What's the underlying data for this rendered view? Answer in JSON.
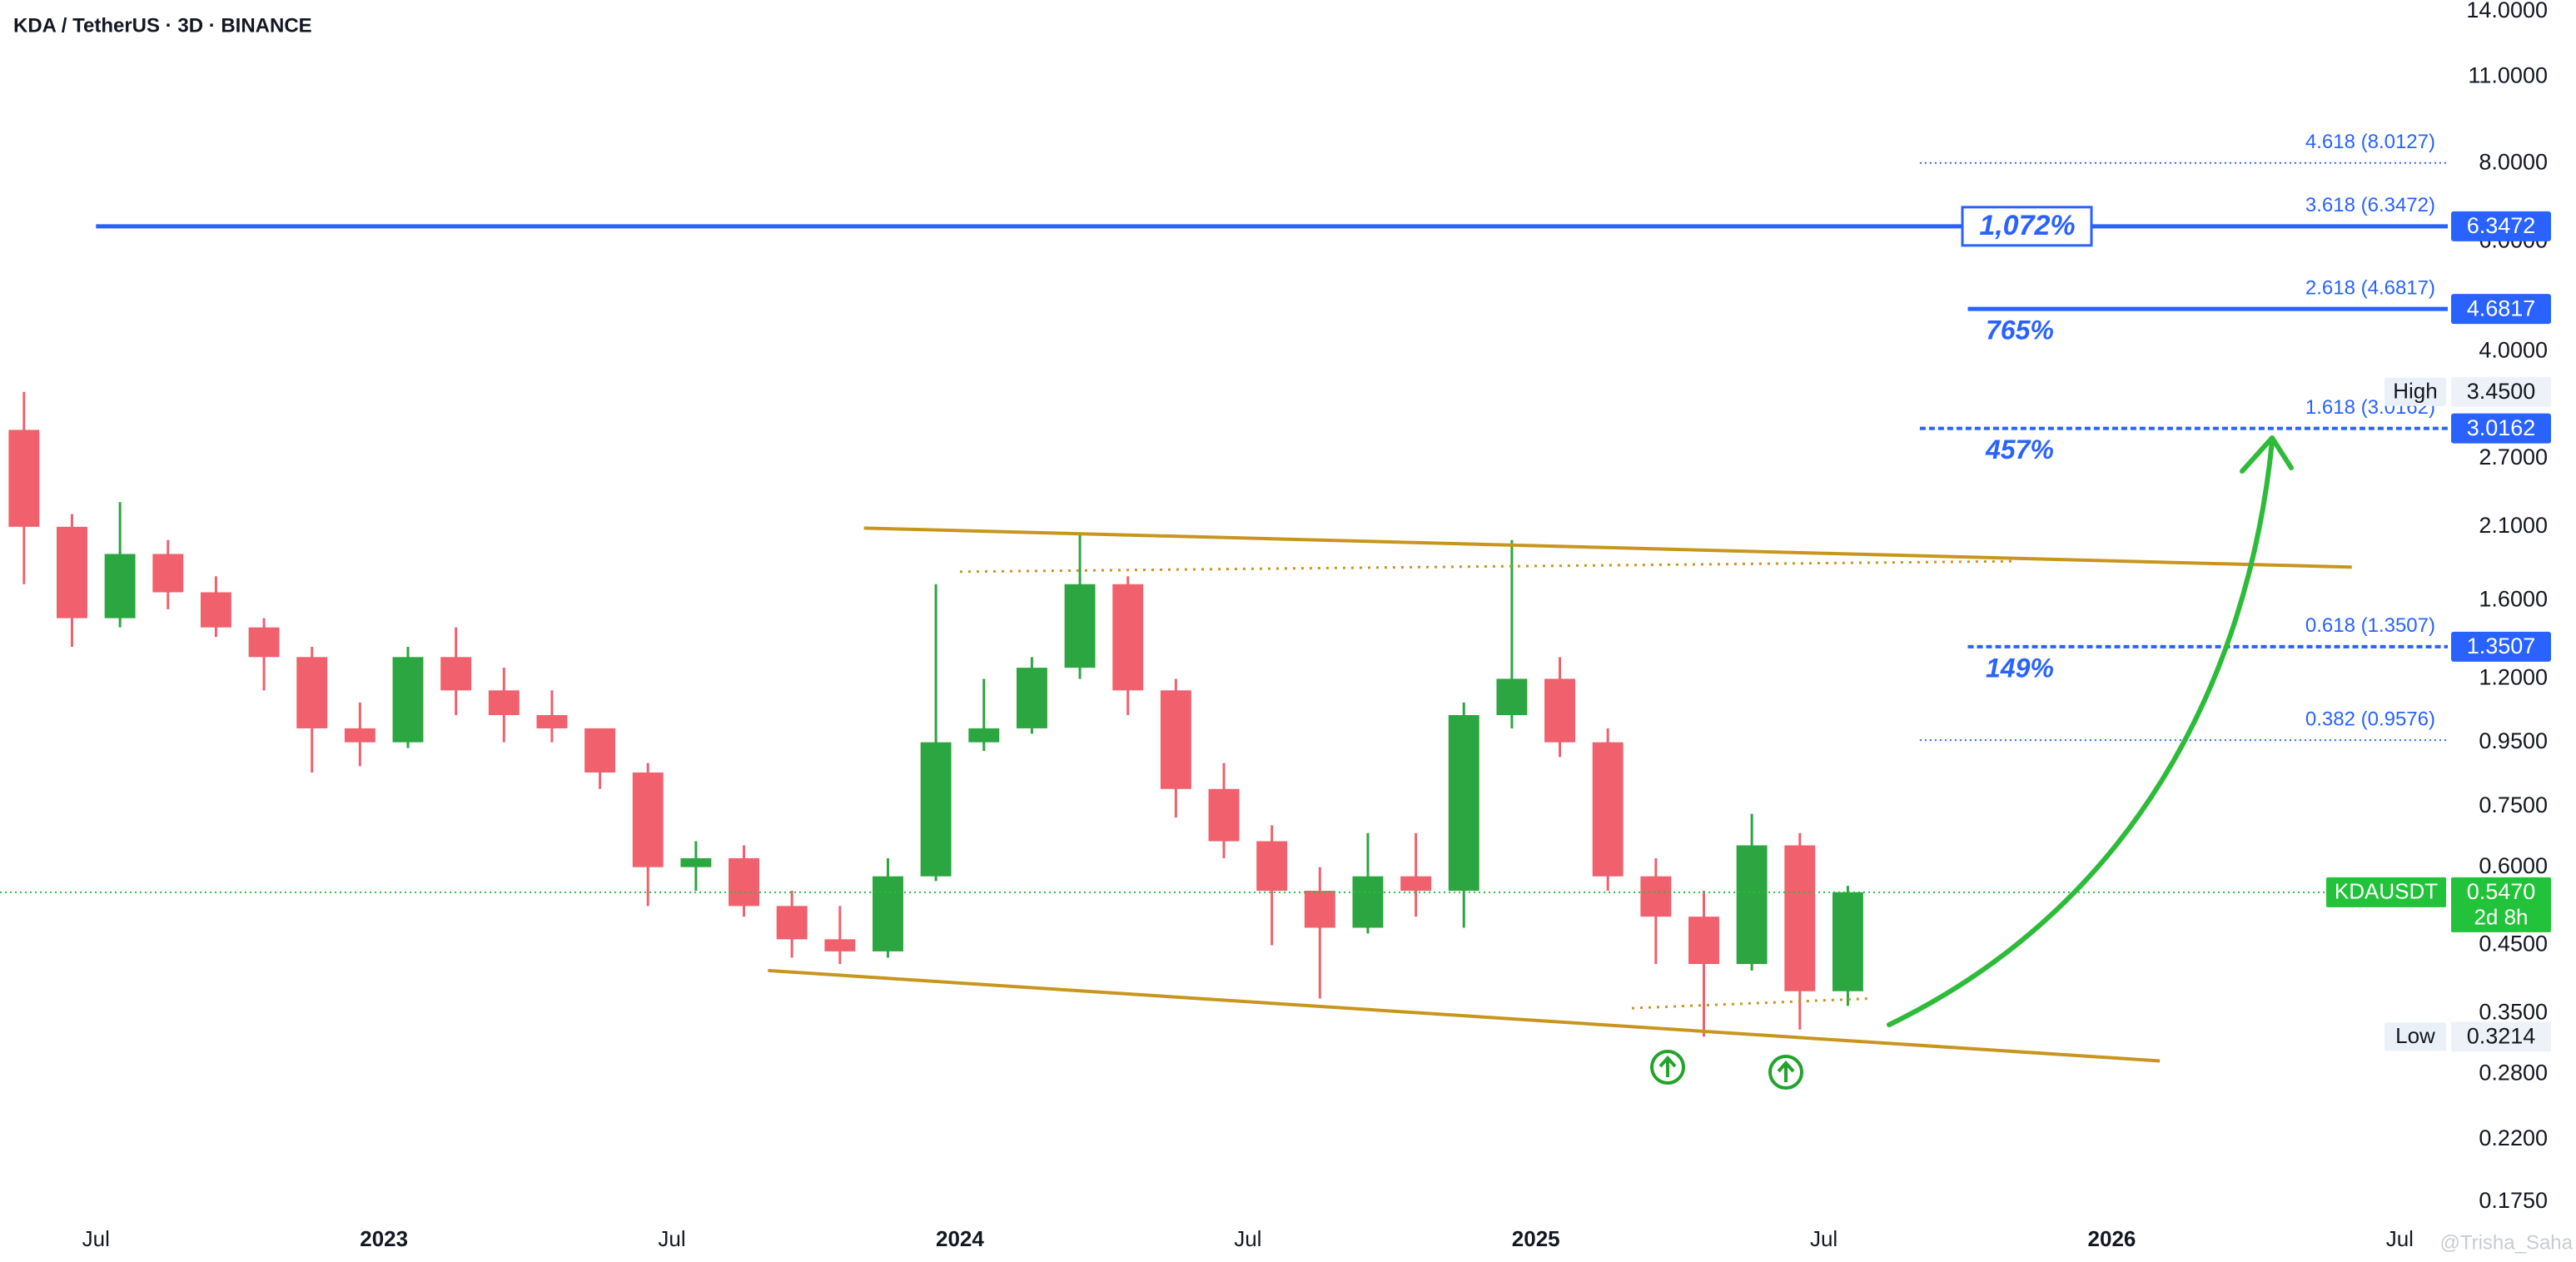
{
  "chart_data": {
    "type": "candlestick",
    "title": "KDA / TetherUS · 3D · BINANCE",
    "log_scale": true,
    "grid": false,
    "up_color": "#2ba640",
    "down_color": "#f0606d",
    "x": [
      "2022-05",
      "2022-06",
      "2022-07",
      "2022-08",
      "2022-09",
      "2022-10",
      "2022-11",
      "2022-12",
      "2023-01",
      "2023-02",
      "2023-03",
      "2023-04",
      "2023-05",
      "2023-06",
      "2023-07",
      "2023-08",
      "2023-09",
      "2023-10",
      "2023-11",
      "2023-12",
      "2024-01",
      "2024-02",
      "2024-03",
      "2024-04",
      "2024-05",
      "2024-06",
      "2024-07",
      "2024-08",
      "2024-09",
      "2024-10",
      "2024-11",
      "2024-12",
      "2025-01",
      "2025-02",
      "2025-03",
      "2025-04",
      "2025-05",
      "2025-06",
      "2025-07"
    ],
    "open": [
      3.0,
      2.1,
      1.5,
      1.9,
      1.65,
      1.45,
      1.3,
      1.0,
      0.95,
      1.3,
      1.15,
      1.05,
      1.0,
      0.85,
      0.6,
      0.62,
      0.52,
      0.46,
      0.44,
      0.58,
      0.95,
      1.0,
      1.25,
      1.7,
      1.15,
      0.8,
      0.66,
      0.55,
      0.48,
      0.58,
      0.55,
      1.05,
      1.2,
      0.95,
      0.58,
      0.5,
      0.42,
      0.65,
      0.38
    ],
    "high": [
      3.45,
      2.2,
      2.3,
      2.0,
      1.75,
      1.5,
      1.35,
      1.1,
      1.35,
      1.45,
      1.25,
      1.15,
      1.0,
      0.88,
      0.66,
      0.65,
      0.55,
      0.52,
      0.62,
      1.7,
      1.2,
      1.3,
      2.05,
      1.75,
      1.2,
      0.88,
      0.7,
      0.6,
      0.68,
      0.68,
      1.1,
      2.0,
      1.3,
      1.0,
      0.62,
      0.55,
      0.73,
      0.68,
      0.56
    ],
    "low": [
      1.7,
      1.35,
      1.45,
      1.55,
      1.4,
      1.15,
      0.85,
      0.87,
      0.93,
      1.05,
      0.95,
      0.95,
      0.8,
      0.52,
      0.55,
      0.5,
      0.43,
      0.42,
      0.43,
      0.57,
      0.92,
      0.98,
      1.2,
      1.05,
      0.72,
      0.62,
      0.45,
      0.37,
      0.47,
      0.5,
      0.48,
      1.0,
      0.9,
      0.55,
      0.42,
      0.3214,
      0.41,
      0.33,
      0.36
    ],
    "close": [
      2.1,
      1.5,
      1.9,
      1.65,
      1.45,
      1.3,
      1.0,
      0.95,
      1.3,
      1.15,
      1.05,
      1.0,
      0.85,
      0.6,
      0.62,
      0.52,
      0.46,
      0.44,
      0.58,
      0.95,
      1.0,
      1.25,
      1.7,
      1.15,
      0.8,
      0.66,
      0.55,
      0.48,
      0.58,
      0.55,
      1.05,
      1.2,
      0.95,
      0.58,
      0.5,
      0.42,
      0.65,
      0.38,
      0.547
    ],
    "xlim": [
      "2022-05",
      "2026-08"
    ],
    "xticks": [
      {
        "value": "2022-07",
        "label": "Jul"
      },
      {
        "value": "2023-01",
        "label": "2023"
      },
      {
        "value": "2023-07",
        "label": "Jul"
      },
      {
        "value": "2024-01",
        "label": "2024"
      },
      {
        "value": "2024-07",
        "label": "Jul"
      },
      {
        "value": "2025-01",
        "label": "2025"
      },
      {
        "value": "2025-07",
        "label": "Jul"
      },
      {
        "value": "2026-01",
        "label": "2026"
      },
      {
        "value": "2026-07",
        "label": "Jul"
      }
    ],
    "ylim": [
      0.1665,
      14.6
    ],
    "yticks": [
      {
        "value": 14,
        "label": "14.0000"
      },
      {
        "value": 11,
        "label": "11.0000"
      },
      {
        "value": 8,
        "label": "8.0000"
      },
      {
        "value": 6,
        "label": "6.0000"
      },
      {
        "value": 4,
        "label": "4.0000"
      },
      {
        "value": 2.7,
        "label": "2.7000"
      },
      {
        "value": 2.1,
        "label": "2.1000"
      },
      {
        "value": 1.6,
        "label": "1.6000"
      },
      {
        "value": 1.2,
        "label": "1.2000"
      },
      {
        "value": 0.95,
        "label": "0.9500"
      },
      {
        "value": 0.75,
        "label": "0.7500"
      },
      {
        "value": 0.6,
        "label": "0.6000"
      },
      {
        "value": 0.45,
        "label": "0.4500"
      },
      {
        "value": 0.35,
        "label": "0.3500"
      },
      {
        "value": 0.28,
        "label": "0.2800"
      },
      {
        "value": 0.22,
        "label": "0.2200"
      },
      {
        "value": 0.175,
        "label": "0.1750"
      }
    ],
    "fib_color": "#2962ff",
    "fib_levels": [
      {
        "label": "4.618 (8.0127)",
        "value": 8.0127,
        "style": "dotted",
        "start": "2025-09",
        "axis_box": false
      },
      {
        "label": "3.618 (6.3472)",
        "value": 6.3472,
        "style": "solid",
        "start": "2022-07",
        "axis_box": true,
        "gain": "1,072%",
        "gain_box": true
      },
      {
        "label": "2.618 (4.6817)",
        "value": 4.6817,
        "style": "solid",
        "start": "2025-10",
        "axis_box": true,
        "gain": "765%"
      },
      {
        "label": "1.618 (3.0162)",
        "value": 3.0162,
        "style": "dashed",
        "start": "2025-09",
        "axis_box": true,
        "gain": "457%"
      },
      {
        "label": "0.618 (1.3507)",
        "value": 1.3507,
        "style": "dashed",
        "start": "2025-10",
        "axis_box": true,
        "gain": "149%"
      },
      {
        "label": "0.382 (0.9576)",
        "value": 0.9576,
        "style": "dotted",
        "start": "2025-09",
        "axis_box": false
      }
    ],
    "trendline_color": "#c8961e",
    "trendlines": [
      {
        "points": [
          [
            "2023-11",
            2.09
          ],
          [
            "2026-06",
            1.81
          ]
        ],
        "style": "solid"
      },
      {
        "points": [
          [
            "2023-09",
            0.41
          ],
          [
            "2026-02",
            0.294
          ]
        ],
        "style": "solid"
      },
      {
        "points": [
          [
            "2024-01",
            1.78
          ],
          [
            "2025-11",
            1.85
          ]
        ],
        "style": "dotted"
      },
      {
        "points": [
          [
            "2025-03",
            0.357
          ],
          [
            "2025-08",
            0.37
          ]
        ],
        "style": "dotted"
      }
    ],
    "extremes": [
      {
        "label": "High",
        "value": 3.45,
        "value_label": "3.4500"
      },
      {
        "label": "Low",
        "value": 0.3214
      }
    ],
    "last_price": {
      "symbol": "KDAUSDT",
      "value": 0.547,
      "value_label": "0.5470",
      "countdown": "2d 8h",
      "color": "#22c33a"
    },
    "watermark": "@Trisha_Saha"
  }
}
